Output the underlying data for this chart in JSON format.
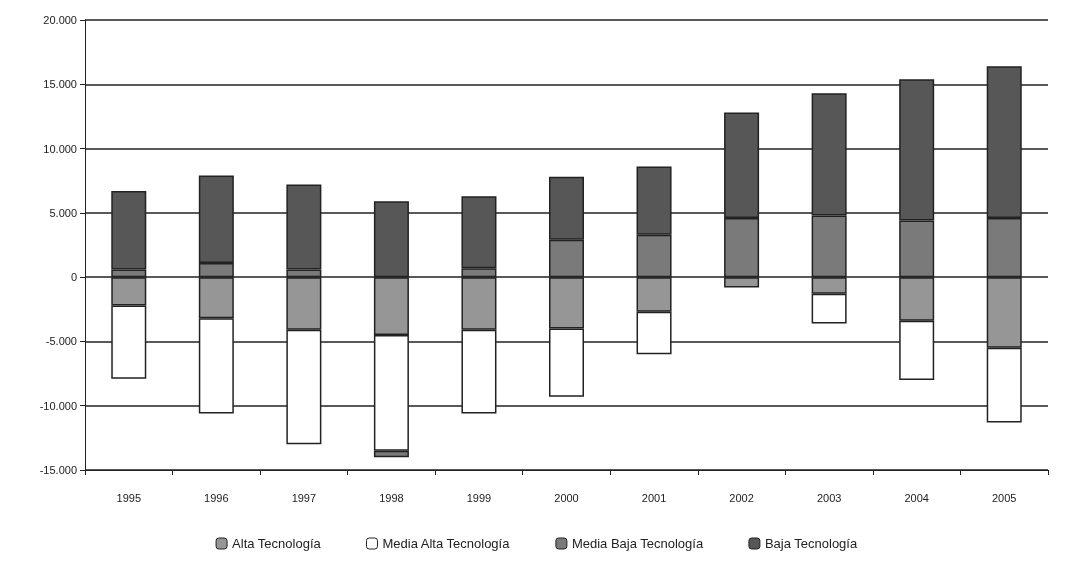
{
  "chart_data": {
    "type": "bar",
    "stacked": true,
    "categories": [
      "1995",
      "1996",
      "1997",
      "1998",
      "1999",
      "2000",
      "2001",
      "2002",
      "2003",
      "2004",
      "2005"
    ],
    "series": [
      {
        "name": "Alta Tecnología",
        "color": "#969696",
        "values": [
          -2200,
          -3200,
          -4100,
          -4500,
          -4100,
          -4000,
          -2700,
          -800,
          -1300,
          -3400,
          -5500
        ]
      },
      {
        "name": "Media Alta Tecnología",
        "color": "#ffffff",
        "values": [
          -5700,
          -7400,
          -8900,
          -9000,
          -6500,
          -5300,
          -3300,
          null,
          -2300,
          -4600,
          -5800
        ]
      },
      {
        "name": "Media Baja Tecnología",
        "color": "#7a7a7a",
        "values": [
          600,
          1100,
          600,
          -500,
          700,
          2900,
          3300,
          4600,
          4800,
          4400,
          4600
        ]
      },
      {
        "name": "Baja Tecnología",
        "color": "#575757",
        "values": [
          6100,
          6800,
          6600,
          5900,
          5600,
          4900,
          5300,
          8200,
          9500,
          11000,
          11800
        ]
      }
    ],
    "ylim": [
      -15000,
      20000
    ],
    "yticks": [
      {
        "value": -15000,
        "label": "-15.000"
      },
      {
        "value": -10000,
        "label": "-10.000"
      },
      {
        "value": -5000,
        "label": "-5.000"
      },
      {
        "value": 0,
        "label": "0"
      },
      {
        "value": 5000,
        "label": "5.000"
      },
      {
        "value": 10000,
        "label": "10.000"
      },
      {
        "value": 15000,
        "label": "15.000"
      },
      {
        "value": 20000,
        "label": "20.000"
      }
    ],
    "grid": "y",
    "legend": "bottom"
  }
}
